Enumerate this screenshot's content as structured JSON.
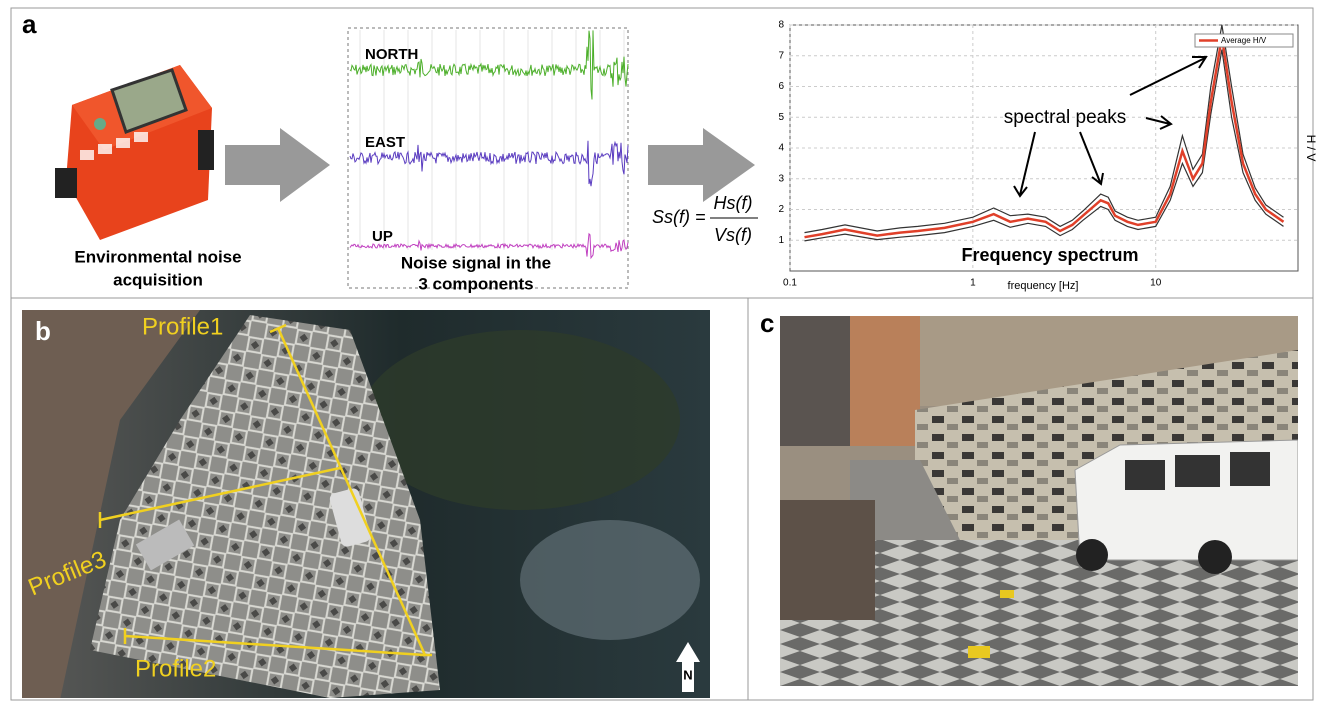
{
  "panel_a": {
    "label": "a",
    "device_caption": [
      "Environmental noise",
      "acquisition"
    ],
    "signal_names": [
      "NORTH",
      "EAST",
      "UP"
    ],
    "signal_caption": [
      "Noise signal in the",
      "3 components"
    ],
    "formula": {
      "lhs": "Ss(f) =",
      "numerator": "Hs(f)",
      "denominator": "Vs(f)"
    },
    "annotation": "spectral peaks",
    "chart_data": {
      "type": "line",
      "title": "Frequency spectrum",
      "x_label": "frequency [Hz]",
      "y_label": "H / V",
      "log_x": true,
      "grid": true,
      "legend": "top-right",
      "x": [
        0.12,
        0.15,
        0.2,
        0.3,
        0.4,
        0.5,
        0.7,
        1,
        1.3,
        1.6,
        2,
        2.5,
        3,
        3.5,
        4,
        5,
        5.5,
        6,
        7,
        8,
        10,
        12,
        14,
        16,
        18,
        20,
        23,
        26,
        30,
        35,
        40,
        50
      ],
      "series": [
        {
          "name": "Average H/V",
          "color": "#e0402a",
          "values": [
            1.1,
            1.2,
            1.35,
            1.15,
            1.25,
            1.3,
            1.4,
            1.6,
            1.85,
            1.6,
            1.7,
            1.6,
            1.3,
            1.5,
            1.8,
            2.3,
            2.2,
            1.8,
            1.6,
            1.5,
            1.6,
            2.5,
            3.9,
            3.0,
            3.5,
            5.5,
            7.6,
            5.5,
            3.5,
            2.5,
            2.0,
            1.6
          ],
          "upper": [
            1.25,
            1.35,
            1.5,
            1.3,
            1.4,
            1.45,
            1.55,
            1.75,
            2.05,
            1.8,
            1.85,
            1.75,
            1.45,
            1.65,
            1.95,
            2.5,
            2.4,
            1.95,
            1.75,
            1.65,
            1.75,
            2.75,
            4.4,
            3.3,
            3.8,
            6.0,
            8.0,
            6.0,
            3.8,
            2.7,
            2.15,
            1.75
          ],
          "lower": [
            0.98,
            1.08,
            1.2,
            1.02,
            1.1,
            1.15,
            1.25,
            1.45,
            1.65,
            1.42,
            1.55,
            1.45,
            1.15,
            1.35,
            1.65,
            2.1,
            2.0,
            1.65,
            1.45,
            1.35,
            1.45,
            2.3,
            3.5,
            2.75,
            3.2,
            5.1,
            7.2,
            5.0,
            3.2,
            2.3,
            1.85,
            1.45
          ],
          "bound_color": "#333333"
        }
      ],
      "xlim": [
        0.1,
        60
      ],
      "xticks": [
        0.1,
        1,
        10
      ],
      "ylim": [
        0,
        8
      ],
      "yticks": [
        1,
        2,
        3,
        4,
        5,
        6,
        7,
        8
      ]
    }
  },
  "panel_b": {
    "label": "b",
    "profiles": [
      "Profile1",
      "Profile2",
      "Profile3"
    ],
    "north": "N"
  },
  "panel_c": {
    "label": "c"
  }
}
